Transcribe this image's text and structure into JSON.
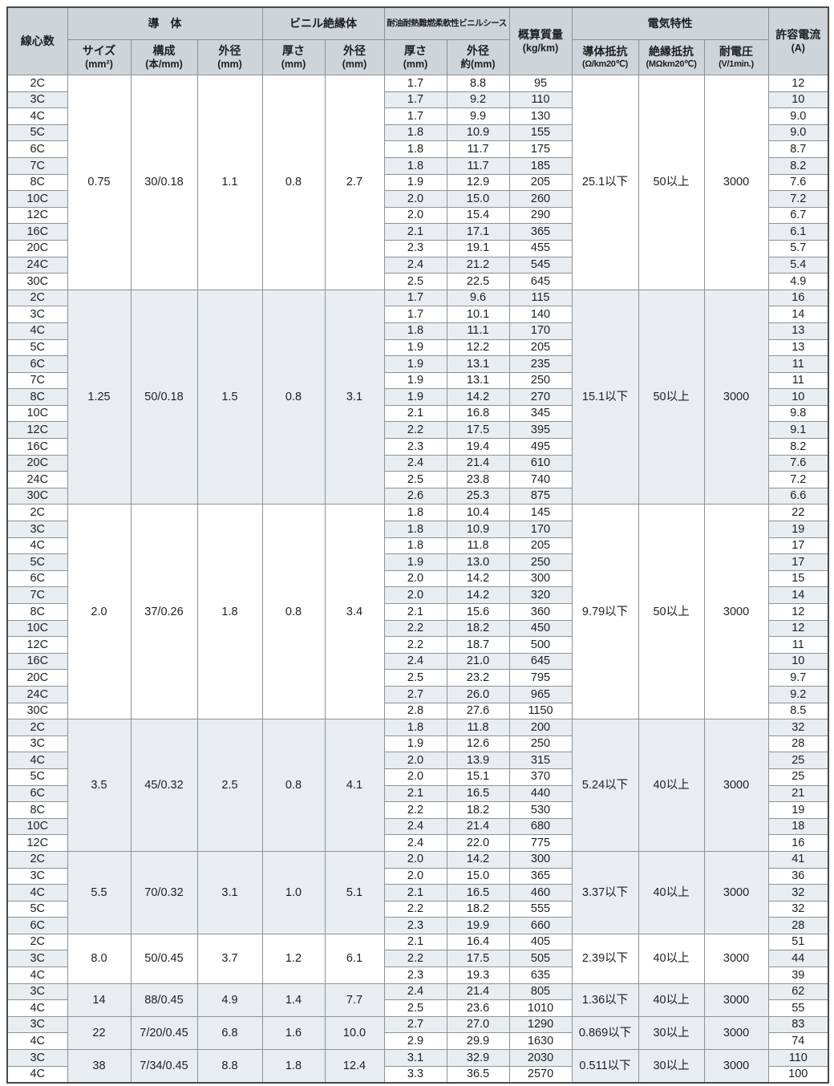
{
  "header": {
    "cores": "線心数",
    "conductor": {
      "label": "導　体",
      "cols": [
        {
          "label": "サイズ",
          "unit": "(mm²)"
        },
        {
          "label": "構成",
          "unit": "(本/mm)"
        },
        {
          "label": "外径",
          "unit": "(mm)"
        }
      ]
    },
    "insulation": {
      "label": "ビニル絶縁体",
      "cols": [
        {
          "label": "厚さ",
          "unit": "(mm)"
        },
        {
          "label": "外径",
          "unit": "(mm)"
        }
      ]
    },
    "sheath": {
      "label": "耐油耐熱難燃柔軟性ビニルシース",
      "cols": [
        {
          "label": "厚さ",
          "unit": "(mm)"
        },
        {
          "label": "外径",
          "unit": "約(mm)"
        }
      ]
    },
    "mass": {
      "label": "概算質量",
      "unit": "(kg/km)"
    },
    "electrical": {
      "label": "電気特性",
      "cols": [
        {
          "label": "導体抵抗",
          "unit": "(Ω/km20℃)"
        },
        {
          "label": "絶縁抵抗",
          "unit": "(MΩkm20℃)"
        },
        {
          "label": "耐電圧",
          "unit": "(V/1min.)"
        }
      ]
    },
    "current": {
      "label": "許容電流",
      "unit": "(A)"
    }
  },
  "colors": {
    "header_bg": "#cdd5da",
    "stripe_bg": "#e8edf1",
    "border": "#8b9297",
    "outer_border": "#46494c"
  },
  "groups": [
    {
      "size": "0.75",
      "strand": "30/0.18",
      "od": "1.1",
      "ins_thickness": "0.8",
      "ins_od": "2.7",
      "resistance": "25.1以下",
      "ins_resistance": "50以上",
      "voltage": "3000",
      "rows": [
        [
          "2C",
          "1.7",
          "8.8",
          "95",
          "12"
        ],
        [
          "3C",
          "1.7",
          "9.2",
          "110",
          "10"
        ],
        [
          "4C",
          "1.7",
          "9.9",
          "130",
          "9.0"
        ],
        [
          "5C",
          "1.8",
          "10.9",
          "155",
          "9.0"
        ],
        [
          "6C",
          "1.8",
          "11.7",
          "175",
          "8.7"
        ],
        [
          "7C",
          "1.8",
          "11.7",
          "185",
          "8.2"
        ],
        [
          "8C",
          "1.9",
          "12.9",
          "205",
          "7.6"
        ],
        [
          "10C",
          "2.0",
          "15.0",
          "260",
          "7.2"
        ],
        [
          "12C",
          "2.0",
          "15.4",
          "290",
          "6.7"
        ],
        [
          "16C",
          "2.1",
          "17.1",
          "365",
          "6.1"
        ],
        [
          "20C",
          "2.3",
          "19.1",
          "455",
          "5.7"
        ],
        [
          "24C",
          "2.4",
          "21.2",
          "545",
          "5.4"
        ],
        [
          "30C",
          "2.5",
          "22.5",
          "645",
          "4.9"
        ]
      ]
    },
    {
      "size": "1.25",
      "strand": "50/0.18",
      "od": "1.5",
      "ins_thickness": "0.8",
      "ins_od": "3.1",
      "resistance": "15.1以下",
      "ins_resistance": "50以上",
      "voltage": "3000",
      "rows": [
        [
          "2C",
          "1.7",
          "9.6",
          "115",
          "16"
        ],
        [
          "3C",
          "1.7",
          "10.1",
          "140",
          "14"
        ],
        [
          "4C",
          "1.8",
          "11.1",
          "170",
          "13"
        ],
        [
          "5C",
          "1.9",
          "12.2",
          "205",
          "13"
        ],
        [
          "6C",
          "1.9",
          "13.1",
          "235",
          "11"
        ],
        [
          "7C",
          "1.9",
          "13.1",
          "250",
          "11"
        ],
        [
          "8C",
          "1.9",
          "14.2",
          "270",
          "10"
        ],
        [
          "10C",
          "2.1",
          "16.8",
          "345",
          "9.8"
        ],
        [
          "12C",
          "2.2",
          "17.5",
          "395",
          "9.1"
        ],
        [
          "16C",
          "2.3",
          "19.4",
          "495",
          "8.2"
        ],
        [
          "20C",
          "2.4",
          "21.4",
          "610",
          "7.6"
        ],
        [
          "24C",
          "2.5",
          "23.8",
          "740",
          "7.2"
        ],
        [
          "30C",
          "2.6",
          "25.3",
          "875",
          "6.6"
        ]
      ]
    },
    {
      "size": "2.0",
      "strand": "37/0.26",
      "od": "1.8",
      "ins_thickness": "0.8",
      "ins_od": "3.4",
      "resistance": "9.79以下",
      "ins_resistance": "50以上",
      "voltage": "3000",
      "rows": [
        [
          "2C",
          "1.8",
          "10.4",
          "145",
          "22"
        ],
        [
          "3C",
          "1.8",
          "10.9",
          "170",
          "19"
        ],
        [
          "4C",
          "1.8",
          "11.8",
          "205",
          "17"
        ],
        [
          "5C",
          "1.9",
          "13.0",
          "250",
          "17"
        ],
        [
          "6C",
          "2.0",
          "14.2",
          "300",
          "15"
        ],
        [
          "7C",
          "2.0",
          "14.2",
          "320",
          "14"
        ],
        [
          "8C",
          "2.1",
          "15.6",
          "360",
          "12"
        ],
        [
          "10C",
          "2.2",
          "18.2",
          "450",
          "12"
        ],
        [
          "12C",
          "2.2",
          "18.7",
          "500",
          "11"
        ],
        [
          "16C",
          "2.4",
          "21.0",
          "645",
          "10"
        ],
        [
          "20C",
          "2.5",
          "23.2",
          "795",
          "9.7"
        ],
        [
          "24C",
          "2.7",
          "26.0",
          "965",
          "9.2"
        ],
        [
          "30C",
          "2.8",
          "27.6",
          "1150",
          "8.5"
        ]
      ]
    },
    {
      "size": "3.5",
      "strand": "45/0.32",
      "od": "2.5",
      "ins_thickness": "0.8",
      "ins_od": "4.1",
      "resistance": "5.24以下",
      "ins_resistance": "40以上",
      "voltage": "3000",
      "rows": [
        [
          "2C",
          "1.8",
          "11.8",
          "200",
          "32"
        ],
        [
          "3C",
          "1.9",
          "12.6",
          "250",
          "28"
        ],
        [
          "4C",
          "2.0",
          "13.9",
          "315",
          "25"
        ],
        [
          "5C",
          "2.0",
          "15.1",
          "370",
          "25"
        ],
        [
          "6C",
          "2.1",
          "16.5",
          "440",
          "21"
        ],
        [
          "8C",
          "2.2",
          "18.2",
          "530",
          "19"
        ],
        [
          "10C",
          "2.4",
          "21.4",
          "680",
          "18"
        ],
        [
          "12C",
          "2.4",
          "22.0",
          "775",
          "16"
        ]
      ]
    },
    {
      "size": "5.5",
      "strand": "70/0.32",
      "od": "3.1",
      "ins_thickness": "1.0",
      "ins_od": "5.1",
      "resistance": "3.37以下",
      "ins_resistance": "40以上",
      "voltage": "3000",
      "rows": [
        [
          "2C",
          "2.0",
          "14.2",
          "300",
          "41"
        ],
        [
          "3C",
          "2.0",
          "15.0",
          "365",
          "36"
        ],
        [
          "4C",
          "2.1",
          "16.5",
          "460",
          "32"
        ],
        [
          "5C",
          "2.2",
          "18.2",
          "555",
          "32"
        ],
        [
          "6C",
          "2.3",
          "19.9",
          "660",
          "28"
        ]
      ]
    },
    {
      "size": "8.0",
      "strand": "50/0.45",
      "od": "3.7",
      "ins_thickness": "1.2",
      "ins_od": "6.1",
      "resistance": "2.39以下",
      "ins_resistance": "40以上",
      "voltage": "3000",
      "rows": [
        [
          "2C",
          "2.1",
          "16.4",
          "405",
          "51"
        ],
        [
          "3C",
          "2.2",
          "17.5",
          "505",
          "44"
        ],
        [
          "4C",
          "2.3",
          "19.3",
          "635",
          "39"
        ]
      ]
    },
    {
      "size": "14",
      "strand": "88/0.45",
      "od": "4.9",
      "ins_thickness": "1.4",
      "ins_od": "7.7",
      "resistance": "1.36以下",
      "ins_resistance": "40以上",
      "voltage": "3000",
      "rows": [
        [
          "3C",
          "2.4",
          "21.4",
          "805",
          "62"
        ],
        [
          "4C",
          "2.5",
          "23.6",
          "1010",
          "55"
        ]
      ]
    },
    {
      "size": "22",
      "strand": "7/20/0.45",
      "od": "6.8",
      "ins_thickness": "1.6",
      "ins_od": "10.0",
      "resistance": "0.869以下",
      "ins_resistance": "30以上",
      "voltage": "3000",
      "rows": [
        [
          "3C",
          "2.7",
          "27.0",
          "1290",
          "83"
        ],
        [
          "4C",
          "2.9",
          "29.9",
          "1630",
          "74"
        ]
      ]
    },
    {
      "size": "38",
      "strand": "7/34/0.45",
      "od": "8.8",
      "ins_thickness": "1.8",
      "ins_od": "12.4",
      "resistance": "0.511以下",
      "ins_resistance": "30以上",
      "voltage": "3000",
      "rows": [
        [
          "3C",
          "3.1",
          "32.9",
          "2030",
          "110"
        ],
        [
          "4C",
          "3.3",
          "36.5",
          "2570",
          "100"
        ]
      ]
    }
  ]
}
